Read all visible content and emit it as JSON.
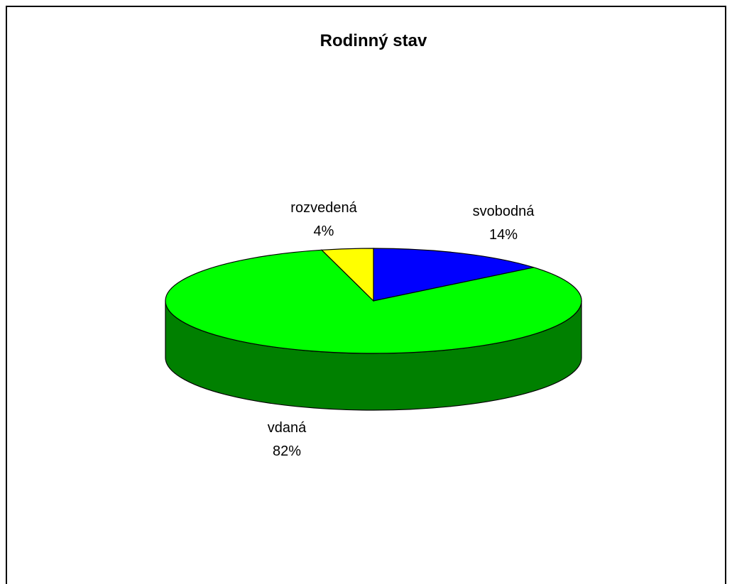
{
  "chart_data": {
    "type": "pie",
    "style": "3d",
    "title": "Rodinný stav",
    "slices": [
      {
        "label": "svobodná",
        "percent": "14%",
        "value": 14,
        "color": "#0000ff"
      },
      {
        "label": "vdaná",
        "percent": "82%",
        "value": 82,
        "color": "#00ff00"
      },
      {
        "label": "rozvedená",
        "percent": "4%",
        "value": 4,
        "color": "#ffff00"
      }
    ],
    "side_color": "#008000",
    "outline_color": "#000000"
  }
}
